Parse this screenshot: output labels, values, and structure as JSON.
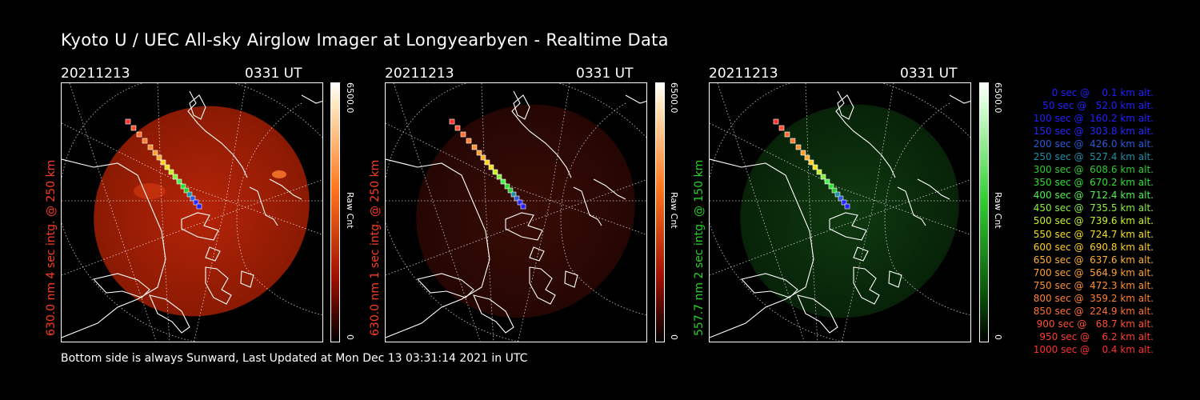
{
  "title": "Kyoto U / UEC All-sky Airglow Imager at Longyearbyen - Realtime Data",
  "footer": "Bottom side is always Sunward, Last Updated at Mon Dec 13 03:31:14 2021 in UTC",
  "panels": [
    {
      "date": "20211213",
      "time": "0331 UT",
      "ylabel": "630.0 nm 4 sec intg. @ 250 km",
      "color": "#ff3b1f",
      "cbar_max": "6500.0",
      "cbar_min": "0",
      "cbar_unit": "Raw Cnt",
      "intensity": "bright"
    },
    {
      "date": "20211213",
      "time": "0331 UT",
      "ylabel": "630.0 nm 1 sec intg. @ 250 km",
      "color": "#ff3b1f",
      "cbar_max": "6500.0",
      "cbar_min": "0",
      "cbar_unit": "Raw Cnt",
      "intensity": "dim"
    },
    {
      "date": "20211213",
      "time": "0331 UT",
      "ylabel": "557.7 nm 2 sec intg. @ 150 km",
      "color": "#27d027",
      "cbar_max": "6500.0",
      "cbar_min": "0",
      "cbar_unit": "Raw Cnt",
      "intensity": "green"
    }
  ],
  "legend": [
    {
      "text": "   0 sec @    0.1 km alt.",
      "color": "#2020ff"
    },
    {
      "text": "  50 sec @   52.0 km alt.",
      "color": "#2020ff"
    },
    {
      "text": " 100 sec @  160.2 km alt.",
      "color": "#2020ff"
    },
    {
      "text": " 150 sec @  303.8 km alt.",
      "color": "#2828ff"
    },
    {
      "text": " 200 sec @  426.0 km alt.",
      "color": "#2a5ad8"
    },
    {
      "text": " 250 sec @  527.4 km alt.",
      "color": "#1c8fa8"
    },
    {
      "text": " 300 sec @  608.6 km alt.",
      "color": "#2ecb2e"
    },
    {
      "text": " 350 sec @  670.2 km alt.",
      "color": "#2ee02e"
    },
    {
      "text": " 400 sec @  712.4 km alt.",
      "color": "#4ef04e"
    },
    {
      "text": " 450 sec @  735.5 km alt.",
      "color": "#8af040"
    },
    {
      "text": " 500 sec @  739.6 km alt.",
      "color": "#c8f028"
    },
    {
      "text": " 550 sec @  724.7 km alt.",
      "color": "#f0e020"
    },
    {
      "text": " 600 sec @  690.8 km alt.",
      "color": "#ffd020"
    },
    {
      "text": " 650 sec @  637.6 km alt.",
      "color": "#ffb030"
    },
    {
      "text": " 700 sec @  564.9 km alt.",
      "color": "#ffa030"
    },
    {
      "text": " 750 sec @  472.3 km alt.",
      "color": "#ff9030"
    },
    {
      "text": " 800 sec @  359.2 km alt.",
      "color": "#ff8030"
    },
    {
      "text": " 850 sec @  224.9 km alt.",
      "color": "#ff7030"
    },
    {
      "text": " 900 sec @   68.7 km alt.",
      "color": "#ff5030"
    },
    {
      "text": " 950 sec @    6.2 km alt.",
      "color": "#ff4030"
    },
    {
      "text": "1000 sec @    0.4 km alt.",
      "color": "#ff3030"
    }
  ]
}
